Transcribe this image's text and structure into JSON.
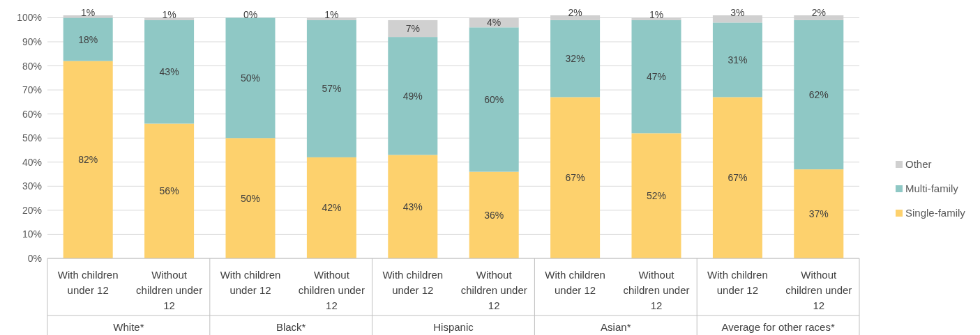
{
  "chart_data": {
    "type": "bar",
    "stacked": true,
    "categories": [
      "With children under 12",
      "Without children under 12",
      "With children under 12",
      "Without children under 12",
      "With children under 12",
      "Without children under 12",
      "With children under 12",
      "Without children under 12",
      "With children under 12",
      "Without children under 12"
    ],
    "annotations": [
      "White*",
      "Black*",
      "Hispanic",
      "Asian*",
      "Average for other races*"
    ],
    "series": [
      {
        "name": "Single-family",
        "color": "#fdd16d",
        "values": [
          82,
          56,
          50,
          42,
          43,
          36,
          67,
          52,
          67,
          37
        ],
        "value_labels": [
          "82%",
          "56%",
          "50%",
          "42%",
          "43%",
          "36%",
          "67%",
          "52%",
          "67%",
          "37%"
        ]
      },
      {
        "name": "Multi-family",
        "color": "#8fc8c5",
        "values": [
          18,
          43,
          50,
          57,
          49,
          60,
          32,
          47,
          31,
          62
        ],
        "value_labels": [
          "18%",
          "43%",
          "50%",
          "57%",
          "49%",
          "60%",
          "32%",
          "47%",
          "31%",
          "62%"
        ]
      },
      {
        "name": "Other",
        "color": "#d0d0d0",
        "values": [
          1,
          1,
          0,
          1,
          7,
          4,
          2,
          1,
          3,
          2
        ],
        "value_labels": [
          "1%",
          "1%",
          "0%",
          "1%",
          "7%",
          "4%",
          "2%",
          "1%",
          "3%",
          "2%"
        ]
      }
    ],
    "ylim": [
      0,
      101
    ],
    "yticks": [
      {
        "value": 0,
        "label": "0%"
      },
      {
        "value": 10,
        "label": "10%"
      },
      {
        "value": 20,
        "label": "20%"
      },
      {
        "value": 30,
        "label": "30%"
      },
      {
        "value": 40,
        "label": "40%"
      },
      {
        "value": 50,
        "label": "50%"
      },
      {
        "value": 60,
        "label": "60%"
      },
      {
        "value": 70,
        "label": "70%"
      },
      {
        "value": 80,
        "label": "80%"
      },
      {
        "value": 90,
        "label": "90%"
      },
      {
        "value": 100,
        "label": "100%"
      }
    ],
    "grid": "y",
    "legend": "right"
  }
}
